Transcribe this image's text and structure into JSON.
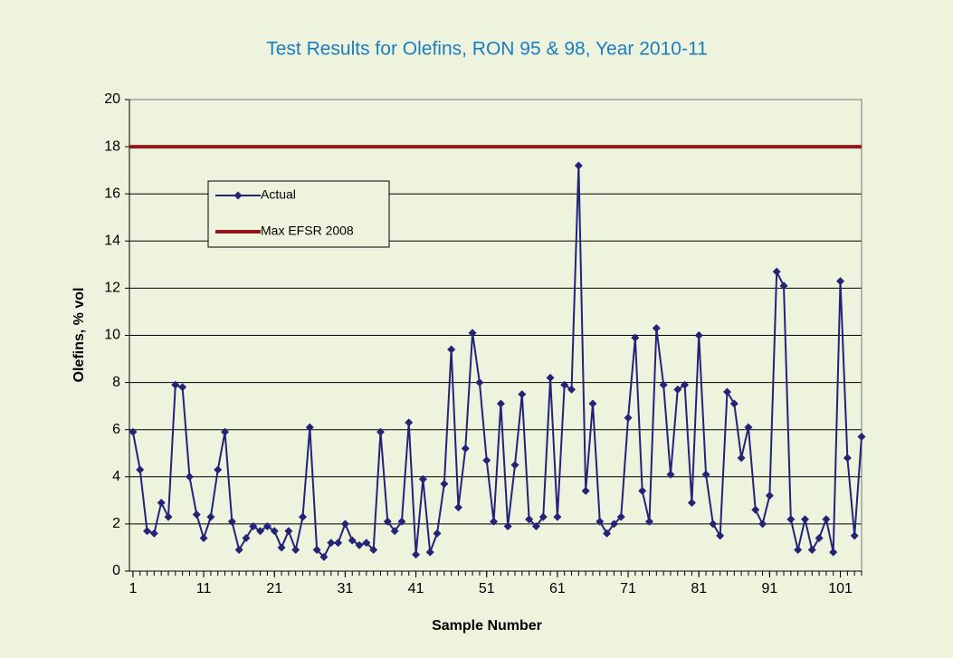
{
  "chart_data": {
    "type": "line",
    "title": "Test Results for Olefins, RON 95 & 98, Year 2010-11",
    "x_label": "Sample Number",
    "y_label": "Olefins, % vol",
    "x": [
      1,
      2,
      3,
      4,
      5,
      6,
      7,
      8,
      9,
      10,
      11,
      12,
      13,
      14,
      15,
      16,
      17,
      18,
      19,
      20,
      21,
      22,
      23,
      24,
      25,
      26,
      27,
      28,
      29,
      30,
      31,
      32,
      33,
      34,
      35,
      36,
      37,
      38,
      39,
      40,
      41,
      42,
      43,
      44,
      45,
      46,
      47,
      48,
      49,
      50,
      51,
      52,
      53,
      54,
      55,
      56,
      57,
      58,
      59,
      60,
      61,
      62,
      63,
      64,
      65,
      66,
      67,
      68,
      69,
      70,
      71,
      72,
      73,
      74,
      75,
      76,
      77,
      78,
      79,
      80,
      81,
      82,
      83,
      84,
      85,
      86,
      87,
      88,
      89,
      90,
      91,
      92,
      93,
      94,
      95,
      96,
      97,
      98,
      99,
      100,
      101,
      102,
      103,
      104
    ],
    "series": [
      {
        "name": "Actual",
        "color": "#232378",
        "values": [
          5.9,
          4.3,
          1.7,
          1.6,
          2.9,
          2.3,
          7.9,
          7.8,
          4.0,
          2.4,
          1.4,
          2.3,
          4.3,
          5.9,
          2.1,
          0.9,
          1.4,
          1.9,
          1.7,
          1.9,
          1.7,
          1.0,
          1.7,
          0.9,
          2.3,
          6.1,
          0.9,
          0.6,
          1.2,
          1.2,
          2.0,
          1.3,
          1.1,
          1.2,
          0.9,
          5.9,
          2.1,
          1.7,
          2.1,
          6.3,
          0.7,
          3.9,
          0.8,
          1.6,
          3.7,
          9.4,
          2.7,
          5.2,
          10.1,
          8.0,
          4.7,
          2.1,
          7.1,
          1.9,
          4.5,
          7.5,
          2.2,
          1.9,
          2.3,
          8.2,
          2.3,
          7.9,
          7.7,
          17.2,
          3.4,
          7.1,
          2.1,
          1.6,
          2.0,
          2.3,
          6.5,
          9.9,
          3.4,
          2.1,
          10.3,
          7.9,
          4.1,
          7.7,
          7.9,
          2.9,
          10.0,
          4.1,
          2.0,
          1.5,
          7.6,
          7.1,
          4.8,
          6.1,
          2.6,
          2.0,
          3.2,
          12.7,
          12.1,
          2.2,
          0.9,
          2.2,
          0.9,
          1.4,
          2.2,
          0.8,
          12.3,
          4.8,
          1.5,
          5.7
        ]
      },
      {
        "name": "Max EFSR 2008",
        "color": "#8b1a1a",
        "value": 18
      }
    ],
    "xlim": [
      0.5,
      104
    ],
    "xticks": [
      1,
      11,
      21,
      31,
      41,
      51,
      61,
      71,
      81,
      91,
      101
    ],
    "ylim": [
      0,
      20
    ],
    "yticks": [
      0,
      2,
      4,
      6,
      8,
      10,
      12,
      14,
      16,
      18,
      20
    ],
    "grid": true,
    "legend": "upper-left"
  }
}
